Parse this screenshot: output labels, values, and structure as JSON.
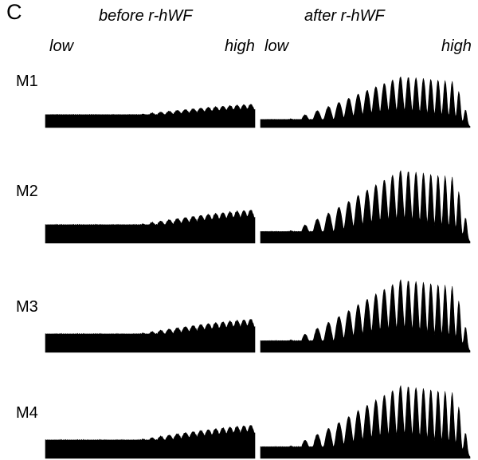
{
  "panel_letter": "C",
  "columns": [
    {
      "title": "before r-hWF",
      "low_label": "low",
      "high_label": "high"
    },
    {
      "title": "after r-hWF",
      "low_label": "low",
      "high_label": "high"
    }
  ],
  "rows": [
    {
      "label": "M1"
    },
    {
      "label": "M2"
    },
    {
      "label": "M3"
    },
    {
      "label": "M4"
    }
  ],
  "colors": {
    "trace": "#000000",
    "background": "#ffffff"
  }
}
